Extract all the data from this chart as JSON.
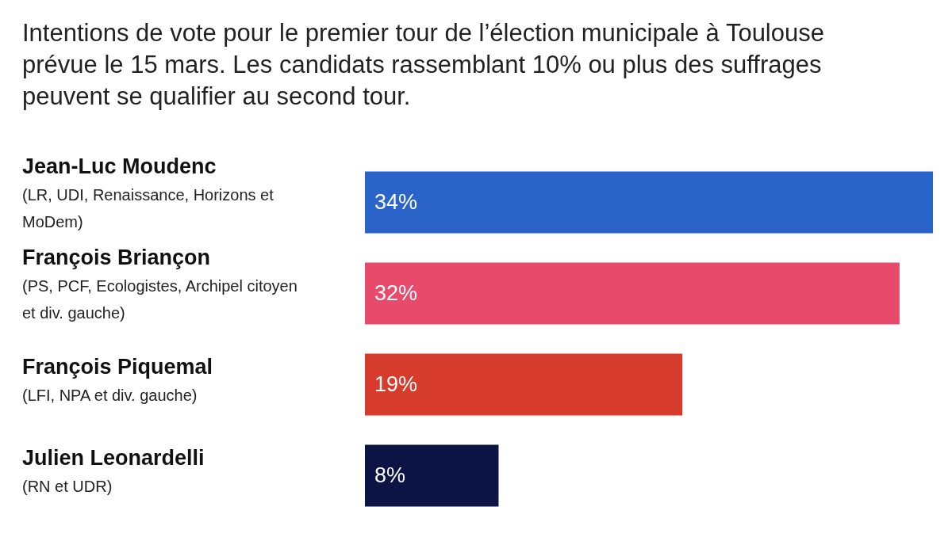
{
  "chart_data": {
    "type": "bar",
    "orientation": "horizontal",
    "title": "Intentions de vote pour le premier tour de l’élection municipale à Toulouse prévue le 15 mars. Les candidats rassemblant 10% ou plus des suffrages peuvent se qualifier au second tour.",
    "categories": [
      "Jean-Luc Moudenc\n(LR, UDI, Renaissance, Horizons et MoDem)",
      "François Briançon\n(PS, PCF, Ecologistes, Archipel citoyen et div. gauche)",
      "François Piquemal\n(LFI, NPA et div. gauche)",
      "Julien Leonardelli\n(RN et UDR)"
    ],
    "values": [
      34,
      32,
      19,
      8
    ],
    "value_labels": [
      "34%",
      "32%",
      "19%",
      "8%"
    ],
    "colors": [
      "#2b64c8",
      "#e84a6c",
      "#d63b2b",
      "#0c1445"
    ],
    "tick_labels": "y"
  }
}
